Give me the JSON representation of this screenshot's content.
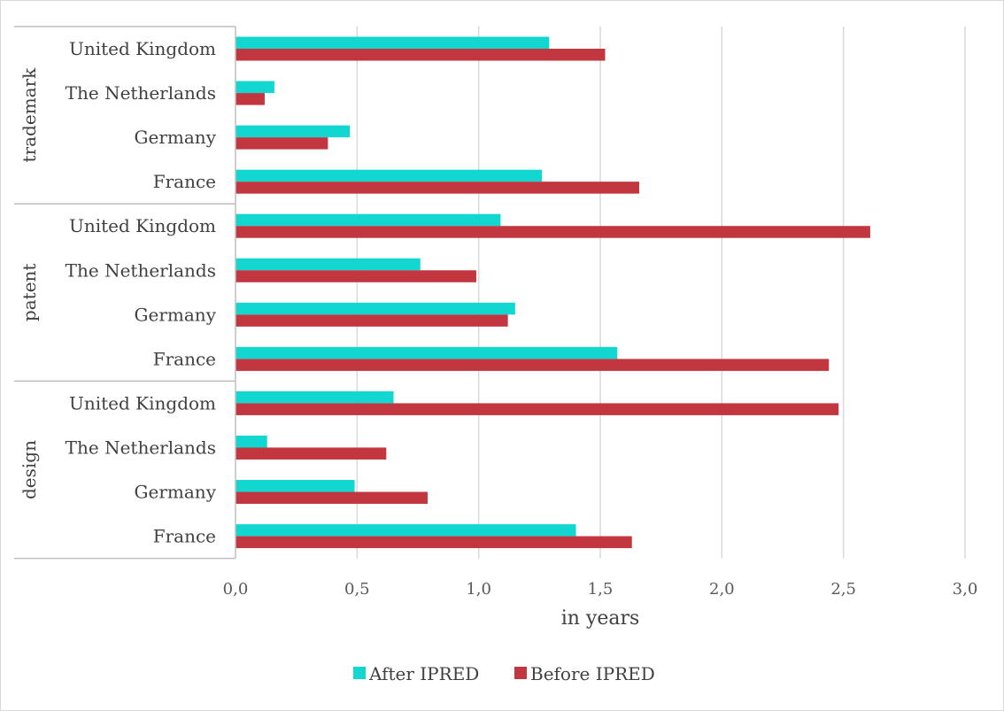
{
  "chart_data": {
    "type": "bar",
    "orientation": "horizontal",
    "xlabel": "in years",
    "xlim": [
      0,
      3
    ],
    "x_ticks": [
      "0,0",
      "0,5",
      "1,0",
      "1,5",
      "2,0",
      "2,5",
      "3,0"
    ],
    "grid": true,
    "legend_position": "bottom",
    "groups": [
      {
        "name": "trademark",
        "categories": [
          "United Kingdom",
          "The Netherlands",
          "Germany",
          "France"
        ]
      },
      {
        "name": "patent",
        "categories": [
          "United Kingdom",
          "The Netherlands",
          "Germany",
          "France"
        ]
      },
      {
        "name": "design",
        "categories": [
          "United Kingdom",
          "The Netherlands",
          "Germany",
          "France"
        ]
      }
    ],
    "series": [
      {
        "name": "After IPRED",
        "color": "#12d6d0",
        "values": [
          1.29,
          0.16,
          0.47,
          1.26,
          1.09,
          0.76,
          1.15,
          1.57,
          0.65,
          0.13,
          0.49,
          1.4
        ]
      },
      {
        "name": "Before IPRED",
        "color": "#c1363f",
        "values": [
          1.52,
          0.12,
          0.38,
          1.66,
          2.61,
          0.99,
          1.12,
          2.44,
          2.48,
          0.62,
          0.79,
          1.63
        ]
      }
    ]
  }
}
